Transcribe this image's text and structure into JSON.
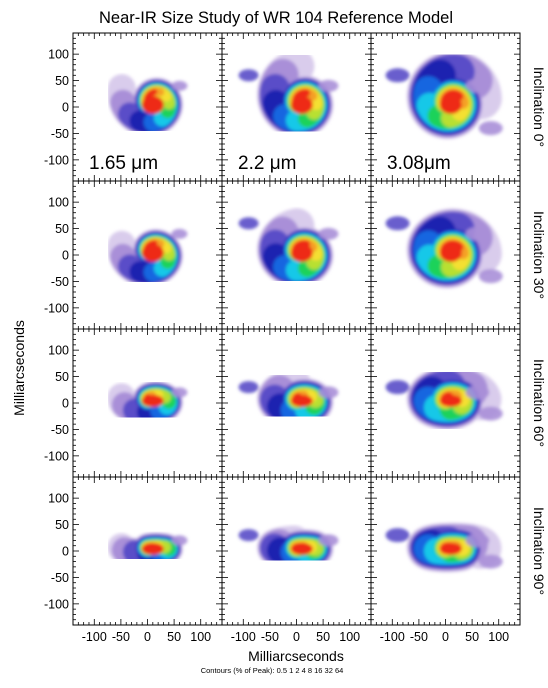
{
  "figure": {
    "title": "Near-IR Size Study of WR 104 Reference Model",
    "y_axis_label": "Milliarcseconds",
    "x_axis_label": "Milliarcseconds",
    "contour_note": "Contours (% of Peak): 0.5  1  2  4  8  16  32  64"
  },
  "chart_data": {
    "type": "heatmap",
    "title": "Near-IR Size Study of WR 104 Reference Model",
    "xlabel": "Milliarcseconds",
    "ylabel": "Milliarcseconds",
    "xlim": [
      -140,
      140
    ],
    "ylim": [
      -140,
      140
    ],
    "x_ticks": [
      -100,
      -50,
      0,
      50,
      100
    ],
    "y_ticks": [
      -100,
      -50,
      0,
      50,
      100
    ],
    "x_tick_labels": [
      "-100",
      "-50",
      "0",
      "50",
      "100"
    ],
    "y_tick_labels": [
      "-100",
      "-50",
      "0",
      "50",
      "100"
    ],
    "contour_levels_percent_of_peak": [
      0.5,
      1,
      2,
      4,
      8,
      16,
      32,
      64
    ],
    "columns": [
      {
        "wavelength": "1.65 μm"
      },
      {
        "wavelength": "2.2 μm"
      },
      {
        "wavelength": "3.08μm"
      }
    ],
    "rows": [
      {
        "label": "Inclination 0°",
        "inclination": 0
      },
      {
        "label": "Inclination 30°",
        "inclination": 30
      },
      {
        "label": "Inclination 60°",
        "inclination": 60
      },
      {
        "label": "Inclination 90°",
        "inclination": 90
      }
    ],
    "colormap": [
      "#ffffff",
      "#d9ccec",
      "#a98fd8",
      "#5a4ec8",
      "#1f22b0",
      "#1566e0",
      "#13c8e8",
      "#1fd25a",
      "#b8e030",
      "#f4e030",
      "#f4a028",
      "#ee2a18"
    ]
  }
}
